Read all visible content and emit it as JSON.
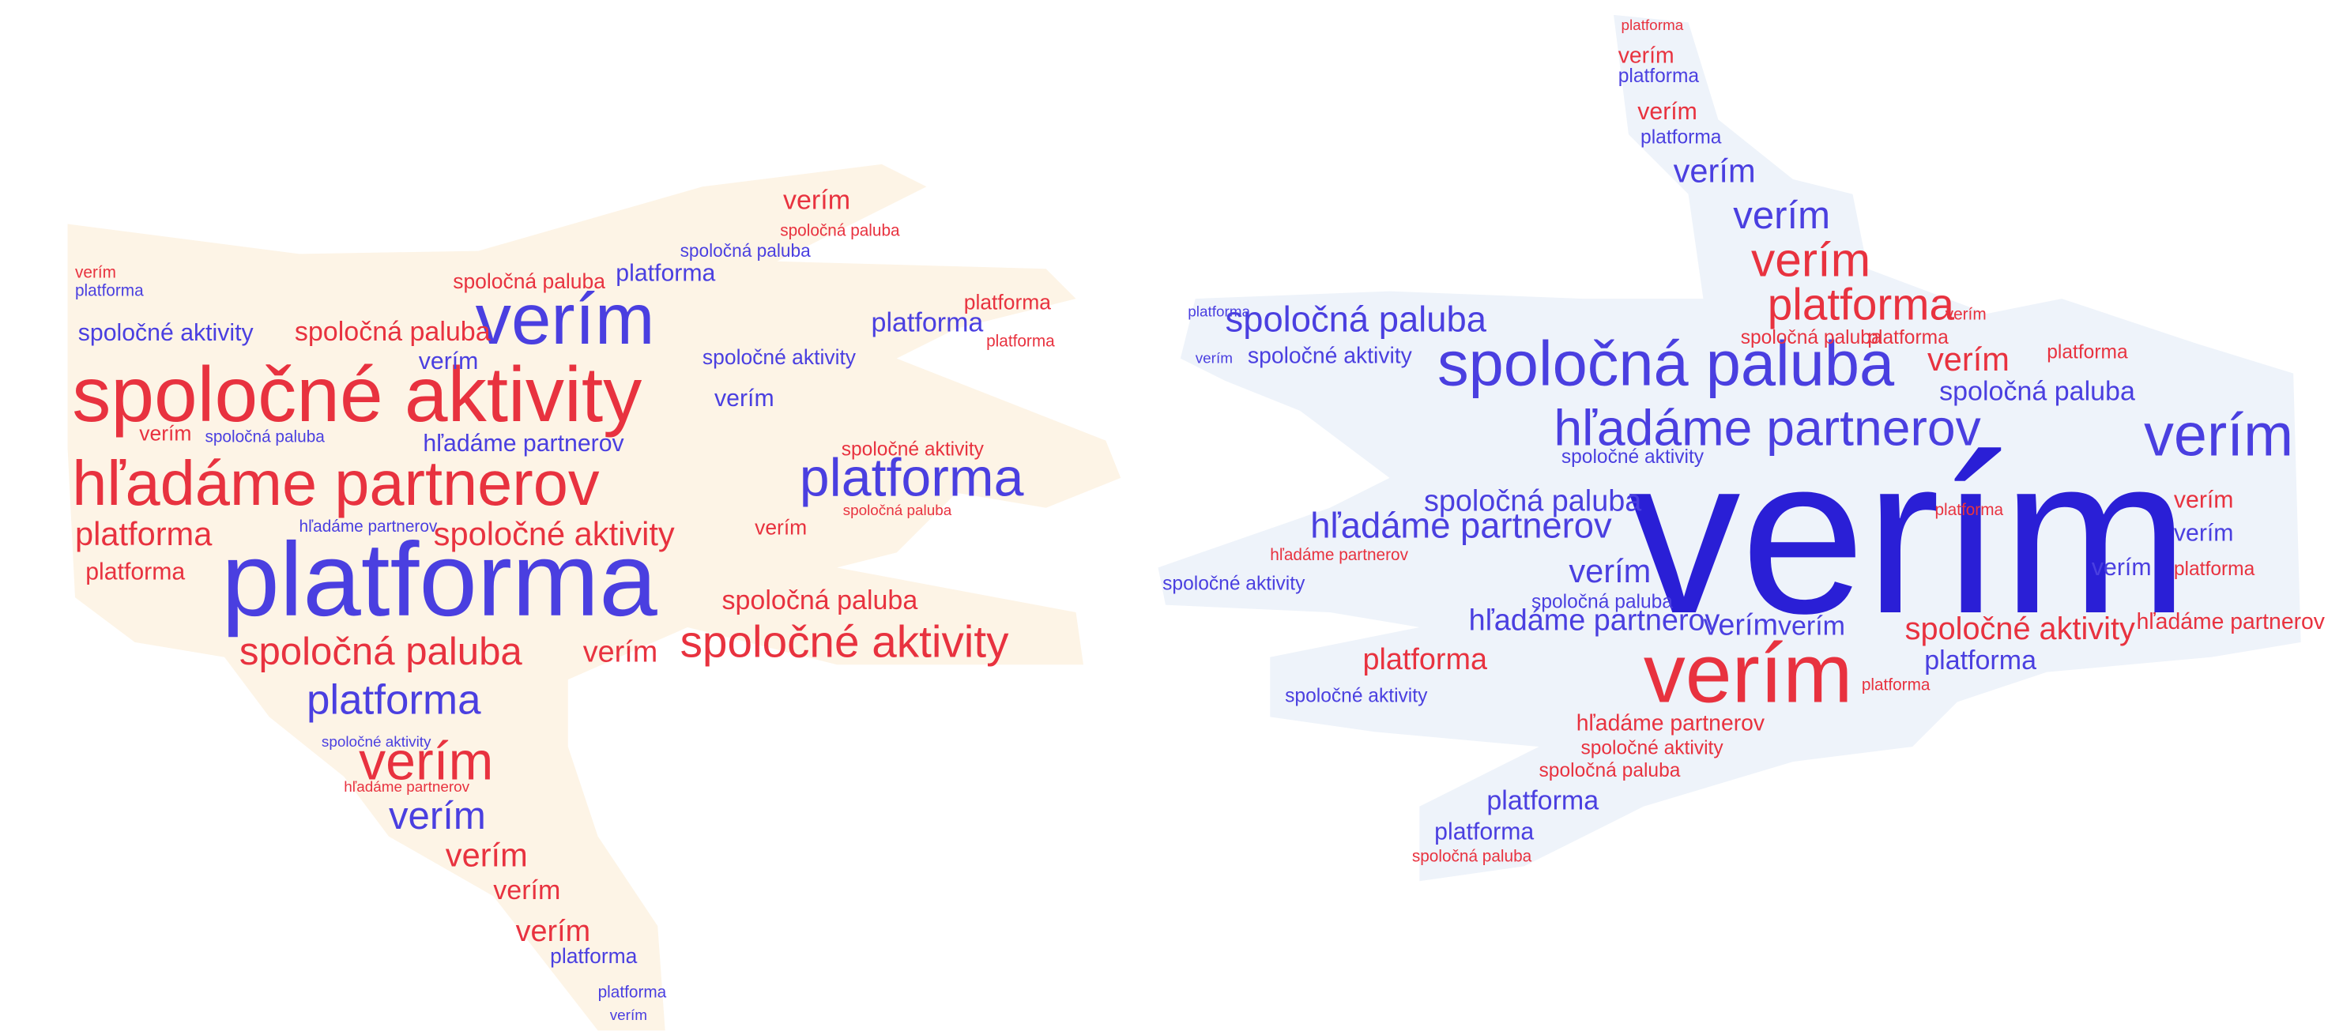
{
  "clouds": [
    {
      "words": [
        {
          "text": "spoločné aktivity",
          "color": "#e8323f"
        },
        {
          "text": "verím",
          "color": "#4a3fe0"
        },
        {
          "text": "hľadáme partnerov",
          "color": "#e8323f"
        },
        {
          "text": "platforma",
          "color": "#4a3fe0"
        },
        {
          "text": "platforma",
          "color": "#4a3fe0"
        },
        {
          "text": "spoločná paluba",
          "color": "#e8323f"
        },
        {
          "text": "verím",
          "color": "#e8323f"
        },
        {
          "text": "spoločné aktivity",
          "color": "#e8323f"
        },
        {
          "text": "platforma",
          "color": "#4a3fe0"
        },
        {
          "text": "verím",
          "color": "#e8323f"
        },
        {
          "text": "verím",
          "color": "#4a3fe0"
        },
        {
          "text": "verím",
          "color": "#e8323f"
        },
        {
          "text": "verím",
          "color": "#e8323f"
        },
        {
          "text": "verím",
          "color": "#e8323f"
        },
        {
          "text": "platforma",
          "color": "#4a3fe0"
        },
        {
          "text": "platforma",
          "color": "#e8323f"
        },
        {
          "text": "platforma",
          "color": "#e8323f"
        },
        {
          "text": "spoločné aktivity",
          "color": "#e8323f"
        },
        {
          "text": "spoločná paluba",
          "color": "#e8323f"
        },
        {
          "text": "spoločná paluba",
          "color": "#e8323f"
        },
        {
          "text": "spoločné aktivity",
          "color": "#4a3fe0"
        },
        {
          "text": "platforma",
          "color": "#4a3fe0"
        },
        {
          "text": "platforma",
          "color": "#4a3fe0"
        },
        {
          "text": "spoločná paluba",
          "color": "#e8323f"
        },
        {
          "text": "verím",
          "color": "#e8323f"
        },
        {
          "text": "spoločná paluba",
          "color": "#e8323f"
        },
        {
          "text": "spoločná paluba",
          "color": "#4a3fe0"
        },
        {
          "text": "spoločné aktivity",
          "color": "#4a3fe0"
        },
        {
          "text": "hľadáme partnerov",
          "color": "#4a3fe0"
        },
        {
          "text": "verím",
          "color": "#4a3fe0"
        },
        {
          "text": "verím",
          "color": "#4a3fe0"
        },
        {
          "text": "spoločná paluba",
          "color": "#4a3fe0"
        },
        {
          "text": "verím",
          "color": "#e8323f"
        },
        {
          "text": "spoločné aktivity",
          "color": "#e8323f"
        },
        {
          "text": "hľadáme partnerov",
          "color": "#4a3fe0"
        },
        {
          "text": "verím",
          "color": "#e8323f"
        },
        {
          "text": "spoločná paluba",
          "color": "#e8323f"
        },
        {
          "text": "platforma",
          "color": "#e8323f"
        },
        {
          "text": "platforma",
          "color": "#e8323f"
        },
        {
          "text": "spoločné aktivity",
          "color": "#4a3fe0"
        },
        {
          "text": "hľadáme partnerov",
          "color": "#e8323f"
        },
        {
          "text": "platforma",
          "color": "#4a3fe0"
        },
        {
          "text": "verím",
          "color": "#4a3fe0"
        },
        {
          "text": "verím",
          "color": "#e8323f"
        },
        {
          "text": "platforma",
          "color": "#4a3fe0"
        }
      ]
    },
    {
      "words": [
        {
          "text": "verím",
          "color": "#2a1fd6"
        },
        {
          "text": "spoločná paluba",
          "color": "#4a3fe0"
        },
        {
          "text": "hľadáme partnerov",
          "color": "#4a3fe0"
        },
        {
          "text": "verím",
          "color": "#4a3fe0"
        },
        {
          "text": "verím",
          "color": "#e8323f"
        },
        {
          "text": "platforma",
          "color": "#e8323f"
        },
        {
          "text": "verím",
          "color": "#e8323f"
        },
        {
          "text": "verím",
          "color": "#4a3fe0"
        },
        {
          "text": "verím",
          "color": "#4a3fe0"
        },
        {
          "text": "platforma",
          "color": "#4a3fe0"
        },
        {
          "text": "verím",
          "color": "#e8323f"
        },
        {
          "text": "platforma",
          "color": "#4a3fe0"
        },
        {
          "text": "verím",
          "color": "#e8323f"
        },
        {
          "text": "spoločná paluba",
          "color": "#4a3fe0"
        },
        {
          "text": "spoločné aktivity",
          "color": "#4a3fe0"
        },
        {
          "text": "hľadáme partnerov",
          "color": "#4a3fe0"
        },
        {
          "text": "spoločná paluba",
          "color": "#4a3fe0"
        },
        {
          "text": "spoločné aktivity",
          "color": "#4a3fe0"
        },
        {
          "text": "hľadáme partnerov",
          "color": "#4a3fe0"
        },
        {
          "text": "spoločné aktivity",
          "color": "#e8323f"
        },
        {
          "text": "platforma",
          "color": "#4a3fe0"
        },
        {
          "text": "hľadáme partnerov",
          "color": "#e8323f"
        },
        {
          "text": "platforma",
          "color": "#e8323f"
        },
        {
          "text": "spoločné aktivity",
          "color": "#4a3fe0"
        },
        {
          "text": "hľadáme partnerov",
          "color": "#e8323f"
        },
        {
          "text": "spoločné aktivity",
          "color": "#e8323f"
        },
        {
          "text": "spoločná paluba",
          "color": "#e8323f"
        },
        {
          "text": "platforma",
          "color": "#4a3fe0"
        },
        {
          "text": "platforma",
          "color": "#4a3fe0"
        },
        {
          "text": "spoločná paluba",
          "color": "#e8323f"
        },
        {
          "text": "spoločná paluba",
          "color": "#4a3fe0"
        },
        {
          "text": "verím",
          "color": "#e8323f"
        },
        {
          "text": "platforma",
          "color": "#e8323f"
        },
        {
          "text": "verím",
          "color": "#4a3fe0"
        },
        {
          "text": "verím",
          "color": "#4a3fe0"
        },
        {
          "text": "verím",
          "color": "#4a3fe0"
        },
        {
          "text": "spoločná paluba",
          "color": "#4a3fe0"
        },
        {
          "text": "hľadáme partnerov",
          "color": "#e8323f"
        },
        {
          "text": "spoločná paluba",
          "color": "#e8323f"
        },
        {
          "text": "platforma",
          "color": "#e8323f"
        },
        {
          "text": "verím",
          "color": "#e8323f"
        },
        {
          "text": "platforma",
          "color": "#4a3fe0"
        },
        {
          "text": "verím",
          "color": "#4a3fe0"
        },
        {
          "text": "verím",
          "color": "#e8323f"
        },
        {
          "text": "verím",
          "color": "#4a3fe0"
        },
        {
          "text": "verím",
          "color": "#4a3fe0"
        },
        {
          "text": "platforma",
          "color": "#e8323f"
        },
        {
          "text": "platforma",
          "color": "#e8323f"
        },
        {
          "text": "spoločné aktivity",
          "color": "#4a3fe0"
        },
        {
          "text": "platforma",
          "color": "#e8323f"
        },
        {
          "text": "platforma",
          "color": "#e8323f"
        }
      ]
    }
  ]
}
